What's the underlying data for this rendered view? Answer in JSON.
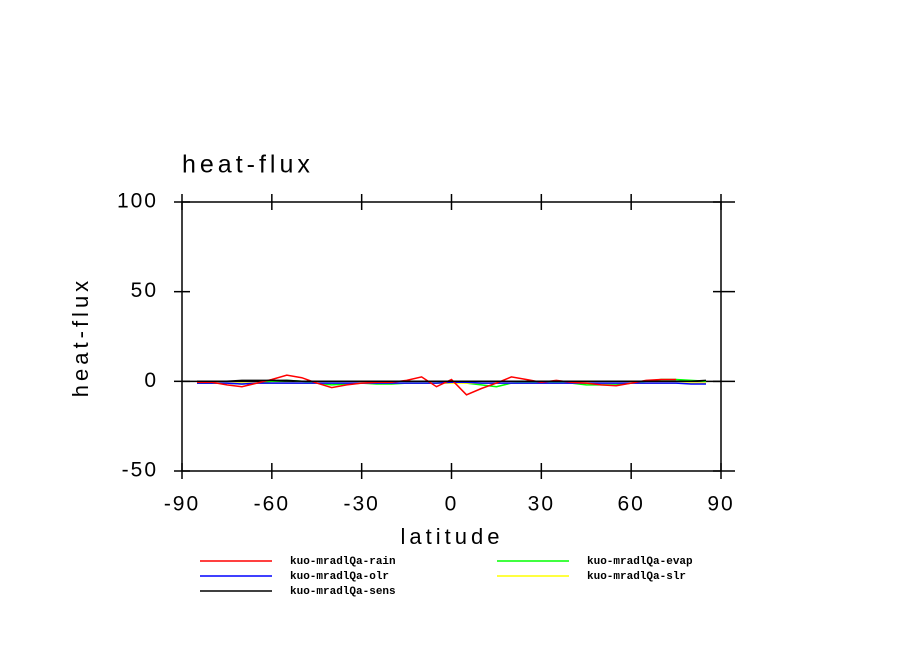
{
  "chart_data": {
    "type": "line",
    "title": "heat-flux",
    "x_label": "latitude",
    "y_label": "heat-flux",
    "x": [
      -85,
      -80,
      -75,
      -70,
      -65,
      -60,
      -55,
      -50,
      -45,
      -40,
      -35,
      -30,
      -25,
      -20,
      -15,
      -10,
      -5,
      0,
      5,
      10,
      15,
      20,
      25,
      30,
      35,
      40,
      45,
      50,
      55,
      60,
      65,
      70,
      75,
      80,
      85
    ],
    "series": [
      {
        "name": "kuo-mradlQa-rain",
        "color": "#ff0000",
        "values": [
          -0.5,
          -0.5,
          -2,
          -3,
          -1,
          1,
          3.5,
          2,
          -1,
          -3.5,
          -2,
          -1,
          -0.5,
          -0.5,
          0.5,
          2.5,
          -3,
          1,
          -7.5,
          -4,
          -1,
          2.5,
          1,
          -0.5,
          0.5,
          -0.5,
          -1,
          -2,
          -2.5,
          -1,
          0.5,
          1,
          1,
          null,
          null
        ]
      },
      {
        "name": "kuo-mradlQa-olr",
        "color": "#0000ff",
        "values": [
          -1,
          -1,
          -1,
          -1.5,
          -1,
          -1,
          -1,
          -1,
          -1,
          -1,
          -1,
          -1,
          -1,
          -1,
          -1,
          -1,
          -1,
          -0.5,
          -0.5,
          -1,
          -1,
          -1,
          -1,
          -1,
          -1,
          -1,
          -1,
          -1,
          -1,
          -1,
          -1,
          -1,
          -1,
          -1.5,
          -1.5
        ]
      },
      {
        "name": "kuo-mradlQa-sens",
        "color": "#000000",
        "values": [
          0,
          0,
          0,
          0.5,
          0.5,
          0.5,
          0.5,
          0,
          0,
          0,
          0,
          0,
          0,
          0,
          0,
          0,
          0,
          0,
          0,
          0,
          0,
          0,
          0,
          0,
          0,
          0,
          0,
          0,
          0,
          0,
          0,
          0,
          0,
          0,
          0.5
        ]
      },
      {
        "name": "kuo-mradlQa-evap",
        "color": "#00ff00",
        "values": [
          -1,
          -1,
          -1,
          -1.5,
          -1,
          0,
          0.5,
          0,
          -1,
          -2,
          -1.5,
          -1,
          -1.5,
          -1.5,
          -1,
          -1,
          -1,
          0,
          -1,
          -2,
          -3,
          -1,
          -0.5,
          -0.5,
          -0.5,
          -1,
          -2,
          -2,
          -2,
          -1,
          0,
          1,
          1,
          0.5,
          0
        ]
      },
      {
        "name": "kuo-mradlQa-slr",
        "color": "#ffff00",
        "values": [
          -1,
          -1,
          -1,
          -1,
          -1,
          -1,
          -1,
          -1,
          -1,
          -1,
          -1,
          -1,
          -1,
          -1,
          -1,
          -1,
          -1,
          -1,
          -1,
          -1,
          -1,
          -1,
          -1,
          -1,
          -1,
          -1,
          -1,
          -1,
          -1,
          -1,
          -1,
          -1,
          -1,
          -1,
          -1
        ]
      }
    ],
    "xlim": [
      -90,
      90
    ],
    "xticks": [
      -90,
      -60,
      -30,
      0,
      30,
      60,
      90
    ],
    "ylim": [
      -50,
      100
    ],
    "yticks": [
      -50,
      0,
      50,
      100
    ]
  }
}
